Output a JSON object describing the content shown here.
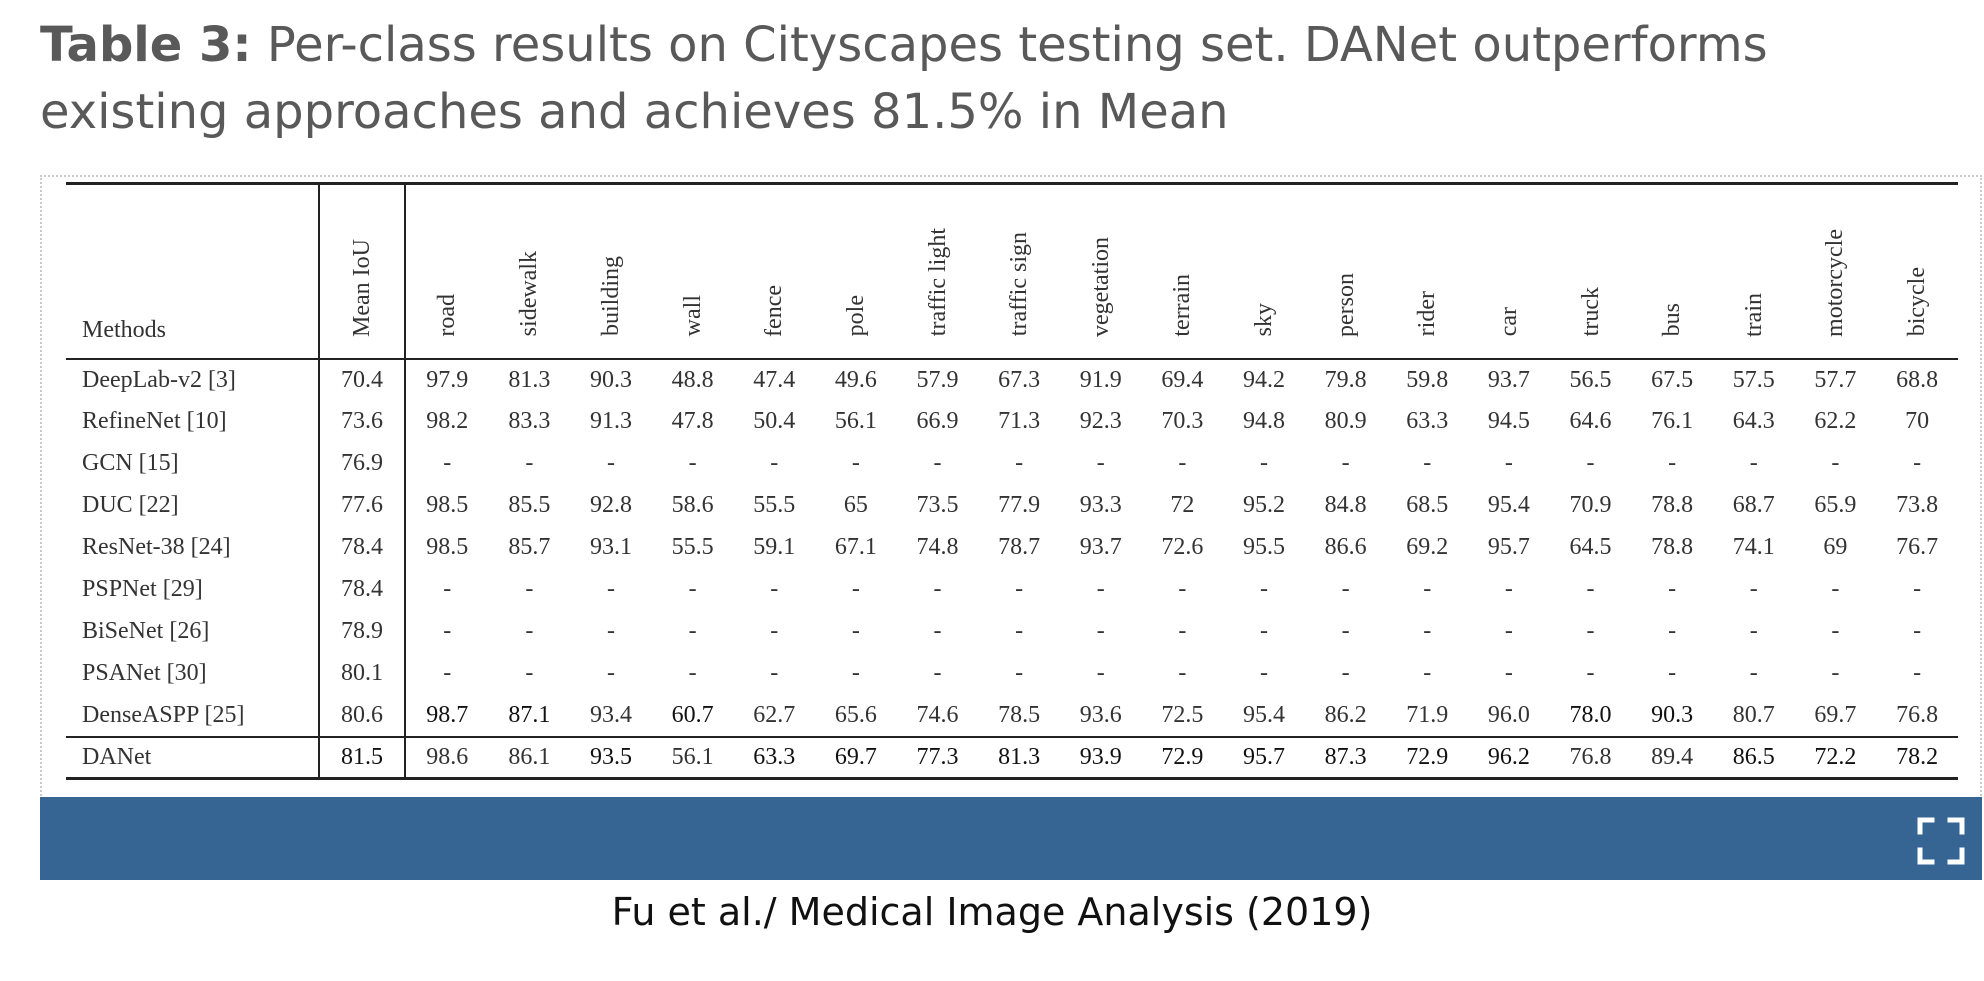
{
  "caption": {
    "label": "Table 3:",
    "text": " Per-class results on Cityscapes testing set. DANet outperforms existing approaches and achieves 81.5% in Mean"
  },
  "table": {
    "method_header": "Methods",
    "metric_header": "Mean IoU",
    "classes": [
      "road",
      "sidewalk",
      "building",
      "wall",
      "fence",
      "pole",
      "traffic light",
      "traffic sign",
      "vegetation",
      "terrain",
      "sky",
      "person",
      "rider",
      "car",
      "truck",
      "bus",
      "train",
      "motorcycle",
      "bicycle"
    ],
    "rows": [
      {
        "method": "DeepLab-v2 [3]",
        "miou": "70.4",
        "values": [
          "97.9",
          "81.3",
          "90.3",
          "48.8",
          "47.4",
          "49.6",
          "57.9",
          "67.3",
          "91.9",
          "69.4",
          "94.2",
          "79.8",
          "59.8",
          "93.7",
          "56.5",
          "67.5",
          "57.5",
          "57.7",
          "68.8"
        ],
        "bold": []
      },
      {
        "method": "RefineNet [10]",
        "miou": "73.6",
        "values": [
          "98.2",
          "83.3",
          "91.3",
          "47.8",
          "50.4",
          "56.1",
          "66.9",
          "71.3",
          "92.3",
          "70.3",
          "94.8",
          "80.9",
          "63.3",
          "94.5",
          "64.6",
          "76.1",
          "64.3",
          "62.2",
          "70"
        ],
        "bold": []
      },
      {
        "method": "GCN [15]",
        "miou": "76.9",
        "values": [
          "-",
          "-",
          "-",
          "-",
          "-",
          "-",
          "-",
          "-",
          "-",
          "-",
          "-",
          "-",
          "-",
          "-",
          "-",
          "-",
          "-",
          "-",
          "-"
        ],
        "bold": []
      },
      {
        "method": "DUC [22]",
        "miou": "77.6",
        "values": [
          "98.5",
          "85.5",
          "92.8",
          "58.6",
          "55.5",
          "65",
          "73.5",
          "77.9",
          "93.3",
          "72",
          "95.2",
          "84.8",
          "68.5",
          "95.4",
          "70.9",
          "78.8",
          "68.7",
          "65.9",
          "73.8"
        ],
        "bold": []
      },
      {
        "method": "ResNet-38 [24]",
        "miou": "78.4",
        "values": [
          "98.5",
          "85.7",
          "93.1",
          "55.5",
          "59.1",
          "67.1",
          "74.8",
          "78.7",
          "93.7",
          "72.6",
          "95.5",
          "86.6",
          "69.2",
          "95.7",
          "64.5",
          "78.8",
          "74.1",
          "69",
          "76.7"
        ],
        "bold": []
      },
      {
        "method": "PSPNet [29]",
        "miou": "78.4",
        "values": [
          "-",
          "-",
          "-",
          "-",
          "-",
          "-",
          "-",
          "-",
          "-",
          "-",
          "-",
          "-",
          "-",
          "-",
          "-",
          "-",
          "-",
          "-",
          "-"
        ],
        "bold": []
      },
      {
        "method": "BiSeNet [26]",
        "miou": "78.9",
        "values": [
          "-",
          "-",
          "-",
          "-",
          "-",
          "-",
          "-",
          "-",
          "-",
          "-",
          "-",
          "-",
          "-",
          "-",
          "-",
          "-",
          "-",
          "-",
          "-"
        ],
        "bold": []
      },
      {
        "method": "PSANet [30]",
        "miou": "80.1",
        "values": [
          "-",
          "-",
          "-",
          "-",
          "-",
          "-",
          "-",
          "-",
          "-",
          "-",
          "-",
          "-",
          "-",
          "-",
          "-",
          "-",
          "-",
          "-",
          "-"
        ],
        "bold": []
      },
      {
        "method": "DenseASPP [25]",
        "miou": "80.6",
        "values": [
          "98.7",
          "87.1",
          "93.4",
          "60.7",
          "62.7",
          "65.6",
          "74.6",
          "78.5",
          "93.6",
          "72.5",
          "95.4",
          "86.2",
          "71.9",
          "96.0",
          "78.0",
          "90.3",
          "80.7",
          "69.7",
          "76.8"
        ],
        "bold": [
          0,
          1,
          3,
          14,
          15
        ]
      },
      {
        "method": "DANet",
        "miou": "81.5",
        "values": [
          "98.6",
          "86.1",
          "93.5",
          "56.1",
          "63.3",
          "69.7",
          "77.3",
          "81.3",
          "93.9",
          "72.9",
          "95.7",
          "87.3",
          "72.9",
          "96.2",
          "76.8",
          "89.4",
          "86.5",
          "72.2",
          "78.2"
        ],
        "bold": [
          2,
          4,
          5,
          6,
          7,
          8,
          9,
          10,
          11,
          12,
          13,
          16,
          17,
          18
        ],
        "miou_bold": true
      }
    ]
  },
  "toolbar": {
    "expand_icon": "expand-icon",
    "color": "#366493"
  },
  "source": "Fu et al./ Medical Image Analysis (2019)"
}
